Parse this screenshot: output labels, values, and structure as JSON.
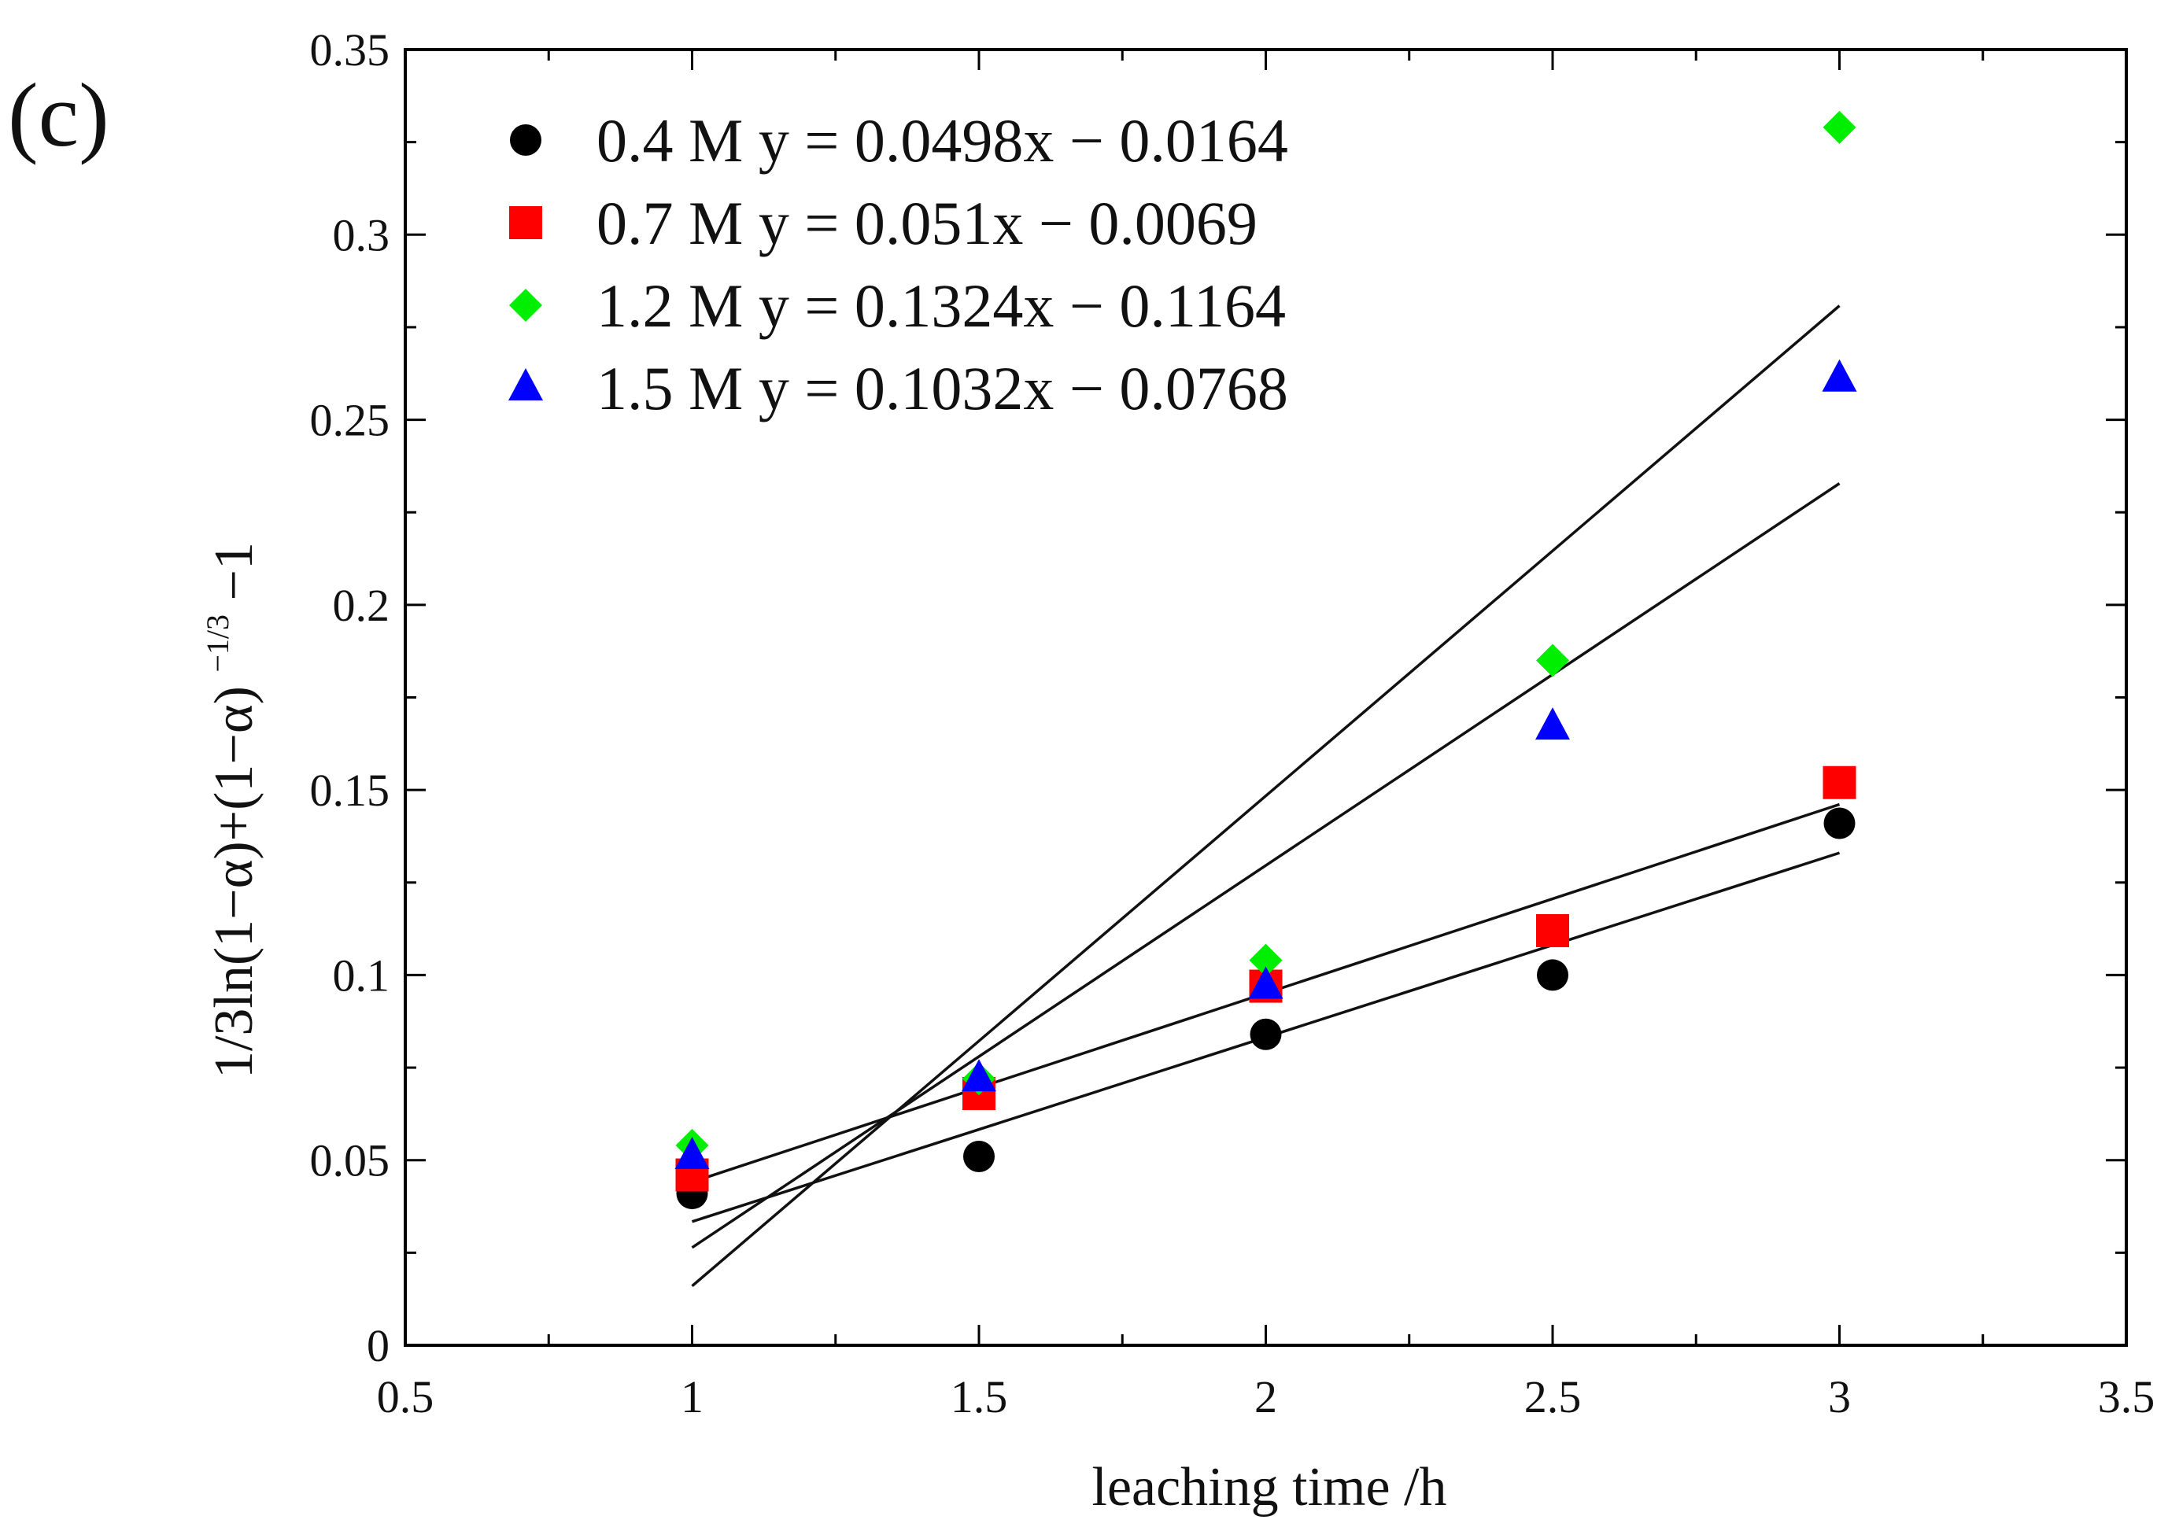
{
  "chart_data": {
    "type": "scatter",
    "panel_label": "(c)",
    "xlabel": "leaching time /h",
    "ylabel": {
      "base": "1/3ln(1−α)+(1−α)",
      "superscript": "−1/3",
      "tail": "−1"
    },
    "xlim": [
      0.5,
      3.5
    ],
    "ylim": [
      0,
      0.35
    ],
    "x_major_ticks": [
      0.5,
      1,
      1.5,
      2,
      2.5,
      3,
      3.5
    ],
    "x_tick_labels": [
      "0.5",
      "1",
      "1.5",
      "2",
      "2.5",
      "3",
      "3.5"
    ],
    "y_major_ticks": [
      0,
      0.05,
      0.1,
      0.15,
      0.2,
      0.25,
      0.3,
      0.35
    ],
    "y_tick_labels": [
      "0",
      "0.05",
      "0.1",
      "0.15",
      "0.2",
      "0.25",
      "0.3",
      "0.35"
    ],
    "legend_position": "top-left",
    "series": [
      {
        "name": "0.4 M",
        "legend": "0.4 M y = 0.0498x − 0.0164",
        "marker": "circle",
        "color": "#000000",
        "x": [
          1,
          1.5,
          2,
          2.5,
          3
        ],
        "y": [
          0.041,
          0.051,
          0.084,
          0.1,
          0.141
        ],
        "fit": {
          "slope": 0.0498,
          "intercept": -0.0164
        }
      },
      {
        "name": "0.7 M",
        "legend": "0.7 M y = 0.051x − 0.0069",
        "marker": "square",
        "color": "#ff0000",
        "x": [
          1,
          1.5,
          2,
          2.5,
          3
        ],
        "y": [
          0.046,
          0.068,
          0.097,
          0.112,
          0.152
        ],
        "fit": {
          "slope": 0.051,
          "intercept": -0.0069
        }
      },
      {
        "name": "1.2 M",
        "legend": "1.2 M y = 0.1324x − 0.1164",
        "marker": "diamond",
        "color": "#00ee00",
        "x": [
          1,
          1.5,
          2,
          2.5,
          3
        ],
        "y": [
          0.054,
          0.072,
          0.104,
          0.185,
          0.329
        ],
        "fit": {
          "slope": 0.1324,
          "intercept": -0.1164
        }
      },
      {
        "name": "1.5 M",
        "legend": "1.5 M y = 0.1032x − 0.0768",
        "marker": "triangle",
        "color": "#0000ff",
        "x": [
          1,
          1.5,
          2,
          2.5,
          3
        ],
        "y": [
          0.051,
          0.072,
          0.097,
          0.167,
          0.261
        ],
        "fit": {
          "slope": 0.1032,
          "intercept": -0.0768
        }
      }
    ]
  }
}
